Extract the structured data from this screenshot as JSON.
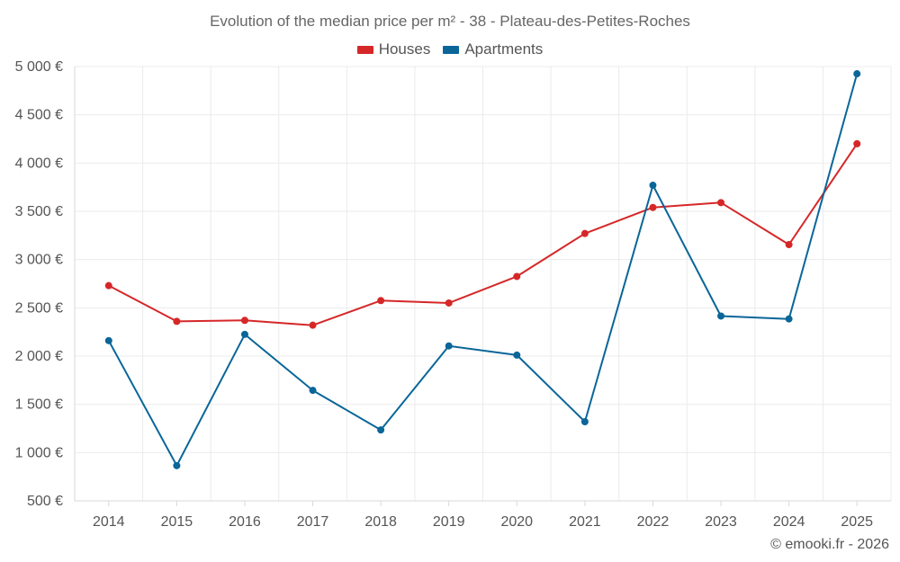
{
  "chart_data": {
    "type": "line",
    "title": "Evolution of the median price per m² - 38 - Plateau-des-Petites-Roches",
    "xlabel": "",
    "ylabel": "",
    "categories": [
      "2014",
      "2015",
      "2016",
      "2017",
      "2018",
      "2019",
      "2020",
      "2021",
      "2022",
      "2023",
      "2024",
      "2025"
    ],
    "ylim": [
      500,
      5000
    ],
    "yticks": [
      500,
      1000,
      1500,
      2000,
      2500,
      3000,
      3500,
      4000,
      4500,
      5000
    ],
    "ytick_labels": [
      "500 €",
      "1 000 €",
      "1 500 €",
      "2 000 €",
      "2 500 €",
      "3 000 €",
      "3 500 €",
      "4 000 €",
      "4 500 €",
      "5 000 €"
    ],
    "grid": true,
    "legend_position": "top-center",
    "series": [
      {
        "name": "Houses",
        "color": "#d62728",
        "values": [
          2730,
          2360,
          2370,
          2320,
          2575,
          2550,
          2825,
          3270,
          3540,
          3590,
          3155,
          4200
        ]
      },
      {
        "name": "Apartments",
        "color": "#0a6699",
        "values": [
          2160,
          865,
          2225,
          1645,
          1235,
          2105,
          2010,
          1320,
          3770,
          2415,
          2385,
          4925
        ]
      }
    ]
  },
  "footer": {
    "credit": "© emooki.fr - 2026"
  }
}
